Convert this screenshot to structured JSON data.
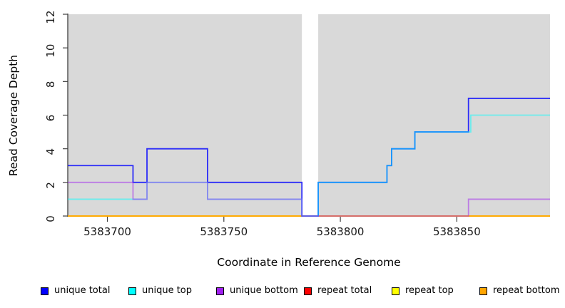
{
  "figure": {
    "x_axis_title": "Coordinate in Reference Genome",
    "y_axis_title": "Read Coverage Depth"
  },
  "legend": [
    {
      "label": "unique total",
      "color": "#0000ff"
    },
    {
      "label": "unique top",
      "color": "#00ffff"
    },
    {
      "label": "unique bottom",
      "color": "#a020f0"
    },
    {
      "label": "repeat total",
      "color": "#ff0000"
    },
    {
      "label": "repeat top",
      "color": "#ffff00"
    },
    {
      "label": "repeat bottom",
      "color": "#ffa500"
    }
  ],
  "chart_data": {
    "type": "line",
    "subtype": "step-coverage",
    "title": "",
    "xlabel": "Coordinate in Reference Genome",
    "ylabel": "Read Coverage Depth",
    "xlim": [
      5383683,
      5383890
    ],
    "ylim": [
      0,
      12
    ],
    "xticks": [
      5383700,
      5383750,
      5383800,
      5383850
    ],
    "yticks": [
      0,
      2,
      4,
      6,
      8,
      10,
      12
    ],
    "grid": false,
    "legend_position": "bottom",
    "panel_bg": "#d9d9d9",
    "gap_region": {
      "start": 5383783.5,
      "end": 5383790.5,
      "fill": "#ffffff"
    },
    "series": [
      {
        "name": "repeat total",
        "color": "#ff0000",
        "opacity": 1,
        "steps": [
          [
            5383683,
            0
          ]
        ]
      },
      {
        "name": "repeat top",
        "color": "#ffff00",
        "opacity": 1,
        "steps": [
          [
            5383683,
            0
          ]
        ]
      },
      {
        "name": "repeat bottom",
        "color": "#ffa500",
        "opacity": 1,
        "steps": [
          [
            5383683,
            0
          ]
        ]
      },
      {
        "name": "unique total",
        "color": "#0000ff",
        "opacity": 0.8,
        "steps": [
          [
            5383683,
            3
          ],
          [
            5383711,
            2
          ],
          [
            5383717,
            4
          ],
          [
            5383743,
            2
          ],
          [
            5383783.5,
            0
          ],
          [
            5383790.5,
            2
          ],
          [
            5383820,
            3
          ],
          [
            5383822,
            4
          ],
          [
            5383832,
            5
          ],
          [
            5383855,
            7
          ]
        ]
      },
      {
        "name": "unique top",
        "color": "#00ffff",
        "opacity": 0.5,
        "steps": [
          [
            5383683,
            1
          ],
          [
            5383717,
            2
          ],
          [
            5383743,
            1
          ],
          [
            5383783.5,
            0
          ],
          [
            5383790.5,
            2
          ],
          [
            5383820,
            3
          ],
          [
            5383822,
            4
          ],
          [
            5383832,
            5
          ],
          [
            5383856,
            6
          ]
        ]
      },
      {
        "name": "unique bottom",
        "color": "#a020f0",
        "opacity": 0.5,
        "steps": [
          [
            5383683,
            2
          ],
          [
            5383711,
            1
          ],
          [
            5383717,
            2
          ],
          [
            5383743,
            1
          ],
          [
            5383783.5,
            0
          ],
          [
            5383855,
            1
          ]
        ]
      }
    ]
  }
}
